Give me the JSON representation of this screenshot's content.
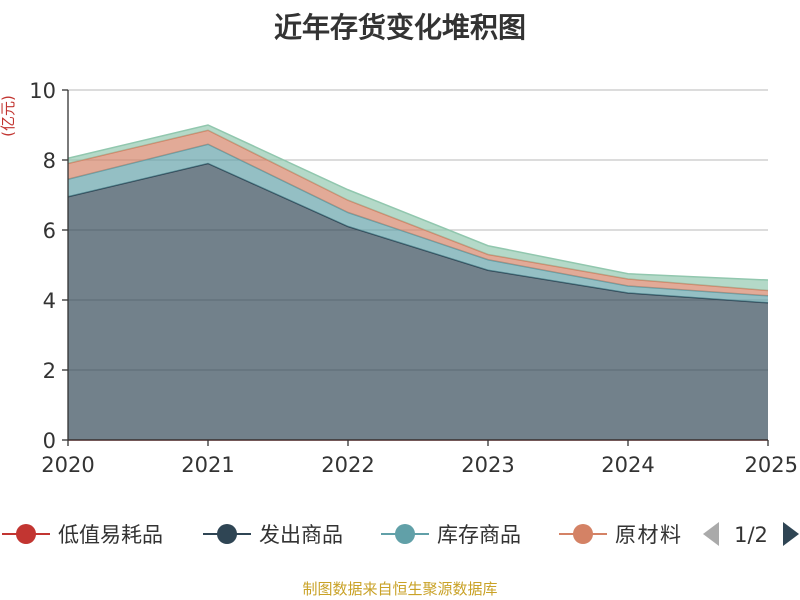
{
  "chart_data": {
    "type": "area",
    "stacked": true,
    "title": "近年存货变化堆积图",
    "ylabel": "(亿元)",
    "x": [
      "2020",
      "2021",
      "2022",
      "2023",
      "2024",
      "2025"
    ],
    "ylim": [
      0,
      10
    ],
    "yticks": [
      0,
      2,
      4,
      6,
      8,
      10
    ],
    "grid": true,
    "legend_position": "bottom",
    "series": [
      {
        "name": "低值易耗品",
        "color": "#c23531",
        "values": [
          0.0,
          0.0,
          0.0,
          0.0,
          0.0,
          0.0
        ]
      },
      {
        "name": "发出商品",
        "color": "#2f4554",
        "values": [
          6.95,
          7.9,
          6.1,
          4.85,
          4.2,
          3.92
        ]
      },
      {
        "name": "库存商品",
        "color": "#61a0a8",
        "values": [
          0.5,
          0.55,
          0.4,
          0.3,
          0.2,
          0.2
        ]
      },
      {
        "name": "原材料",
        "color": "#d48265",
        "values": [
          0.45,
          0.4,
          0.35,
          0.15,
          0.2,
          0.15
        ]
      },
      {
        "name": "",
        "color": "#91c7ae",
        "values": [
          0.15,
          0.15,
          0.3,
          0.25,
          0.15,
          0.3
        ]
      }
    ]
  },
  "legend": {
    "page": "1/2"
  },
  "footer": {
    "source": "制图数据来自恒生聚源数据库"
  }
}
